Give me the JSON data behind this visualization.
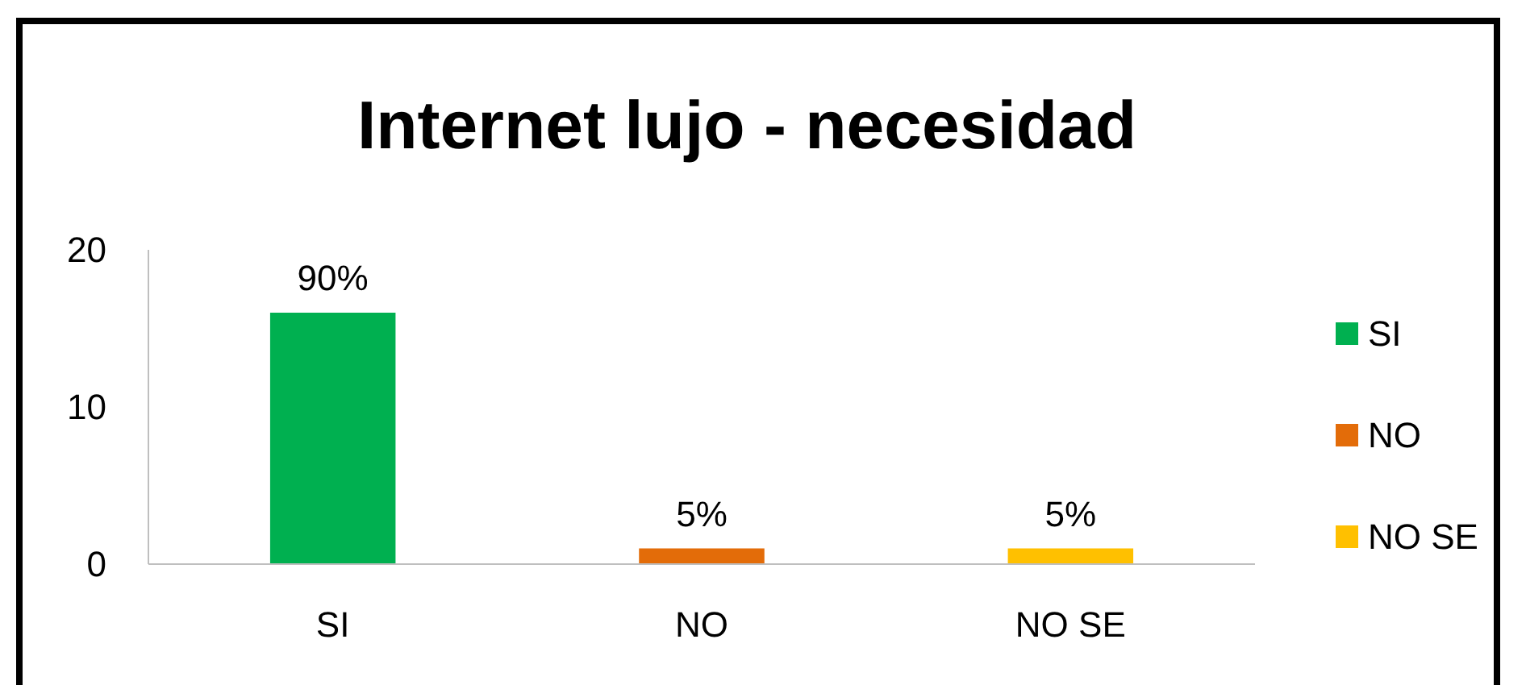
{
  "chart_data": {
    "type": "bar",
    "title": "Internet lujo - necesidad",
    "categories": [
      "SI",
      "NO",
      "NO SE"
    ],
    "series": [
      {
        "name": "SI",
        "color": "#00b050",
        "values": [
          16,
          null,
          null
        ]
      },
      {
        "name": "NO",
        "color": "#e36c09",
        "values": [
          null,
          1,
          null
        ]
      },
      {
        "name": "NO SE",
        "color": "#ffc000",
        "values": [
          null,
          null,
          1
        ]
      }
    ],
    "annotations": [
      {
        "text": "90%",
        "x": "SI",
        "y": 16
      },
      {
        "text": "5%",
        "x": "NO",
        "y": 1
      },
      {
        "text": "5%",
        "x": "NO SE",
        "y": 1
      }
    ],
    "ylim": [
      0,
      20
    ],
    "yticks": [
      0,
      10,
      20
    ],
    "grid": false,
    "legend": "right"
  }
}
